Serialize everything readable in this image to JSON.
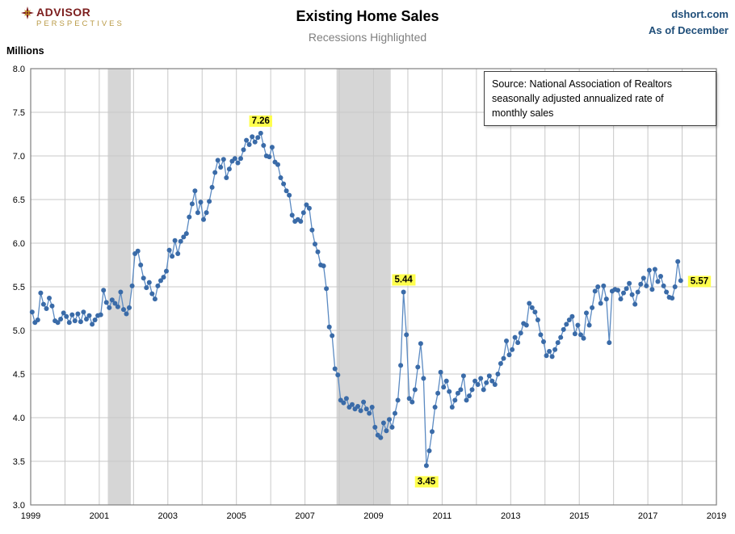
{
  "header": {
    "logo_line1": "ADVISOR",
    "logo_line2": "PERSPECTIVES",
    "title": "Existing Home Sales",
    "subtitle": "Recessions Highlighted",
    "site": "dshort.com",
    "as_of": "As of December"
  },
  "source_box": {
    "lines": [
      "Source: National Association of Realtors",
      "seasonally adjusted annualized rate of",
      "monthly sales"
    ]
  },
  "chart_data": {
    "type": "line",
    "title": "Existing Home Sales",
    "subtitle": "Recessions Highlighted",
    "ylabel": "Millions",
    "xlabel": "",
    "ylim": [
      3.0,
      8.0
    ],
    "xlim": [
      1999,
      2019
    ],
    "x_ticks": [
      1999,
      2001,
      2003,
      2005,
      2007,
      2009,
      2011,
      2013,
      2015,
      2017,
      2019
    ],
    "y_tick_step": 0.5,
    "grid": true,
    "start_year": 1999,
    "colors": {
      "grid": "#c8c8c8",
      "border": "#7f7f7f",
      "recession": "#d6d6d6",
      "highlight": "#ffff4d",
      "header_blue": "#1f4e79",
      "logo_maroon": "#7c1e1e",
      "logo_gold": "#b99a45"
    },
    "recessions": [
      {
        "start": 2001.25,
        "end": 2001.92
      },
      {
        "start": 2007.92,
        "end": 2009.5
      }
    ],
    "series": [
      {
        "name": "Existing Home Sales (SAAR, millions)",
        "line_color": "#5b8ac2",
        "marker_color": "#3a6ba8",
        "values": [
          5.21,
          5.09,
          5.12,
          5.43,
          5.3,
          5.25,
          5.37,
          5.28,
          5.11,
          5.09,
          5.13,
          5.2,
          5.16,
          5.09,
          5.18,
          5.11,
          5.19,
          5.1,
          5.21,
          5.13,
          5.17,
          5.07,
          5.12,
          5.17,
          5.18,
          5.46,
          5.32,
          5.26,
          5.35,
          5.31,
          5.27,
          5.44,
          5.24,
          5.19,
          5.26,
          5.51,
          5.88,
          5.91,
          5.75,
          5.6,
          5.49,
          5.55,
          5.42,
          5.36,
          5.51,
          5.57,
          5.61,
          5.68,
          5.92,
          5.85,
          6.03,
          5.88,
          6.02,
          6.07,
          6.11,
          6.3,
          6.45,
          6.6,
          6.35,
          6.47,
          6.27,
          6.35,
          6.48,
          6.64,
          6.81,
          6.95,
          6.87,
          6.96,
          6.75,
          6.85,
          6.94,
          6.97,
          6.92,
          6.97,
          7.07,
          7.18,
          7.13,
          7.22,
          7.16,
          7.21,
          7.26,
          7.12,
          7.0,
          6.99,
          7.1,
          6.93,
          6.9,
          6.75,
          6.68,
          6.6,
          6.55,
          6.32,
          6.25,
          6.27,
          6.25,
          6.35,
          6.44,
          6.4,
          6.15,
          5.99,
          5.9,
          5.75,
          5.74,
          5.48,
          5.04,
          4.94,
          4.56,
          4.49,
          4.2,
          4.17,
          4.22,
          4.12,
          4.15,
          4.1,
          4.13,
          4.08,
          4.18,
          4.1,
          4.05,
          4.12,
          3.89,
          3.8,
          3.77,
          3.94,
          3.85,
          3.98,
          3.89,
          4.05,
          4.2,
          4.6,
          5.44,
          4.95,
          4.22,
          4.18,
          4.32,
          4.58,
          4.85,
          4.45,
          3.45,
          3.62,
          3.84,
          4.12,
          4.28,
          4.52,
          4.35,
          4.42,
          4.3,
          4.12,
          4.2,
          4.28,
          4.32,
          4.48,
          4.2,
          4.25,
          4.32,
          4.42,
          4.38,
          4.45,
          4.32,
          4.4,
          4.48,
          4.42,
          4.38,
          4.5,
          4.62,
          4.68,
          4.88,
          4.72,
          4.78,
          4.92,
          4.86,
          4.97,
          5.08,
          5.06,
          5.31,
          5.26,
          5.21,
          5.12,
          4.95,
          4.87,
          4.71,
          4.76,
          4.7,
          4.78,
          4.86,
          4.92,
          5.01,
          5.07,
          5.12,
          5.16,
          4.96,
          5.06,
          4.95,
          4.91,
          5.2,
          5.06,
          5.26,
          5.45,
          5.5,
          5.31,
          5.51,
          5.36,
          4.86,
          5.45,
          5.47,
          5.46,
          5.36,
          5.43,
          5.48,
          5.54,
          5.41,
          5.3,
          5.44,
          5.53,
          5.6,
          5.51,
          5.69,
          5.47,
          5.7,
          5.56,
          5.62,
          5.51,
          5.44,
          5.38,
          5.37,
          5.5,
          5.79,
          5.57
        ]
      }
    ],
    "annotations": [
      {
        "text": "7.26",
        "index": 80,
        "placement": "above"
      },
      {
        "text": "5.44",
        "index": 130,
        "placement": "above"
      },
      {
        "text": "3.45",
        "index": 138,
        "placement": "below"
      },
      {
        "text": "5.57",
        "index": 227,
        "placement": "right"
      }
    ]
  }
}
